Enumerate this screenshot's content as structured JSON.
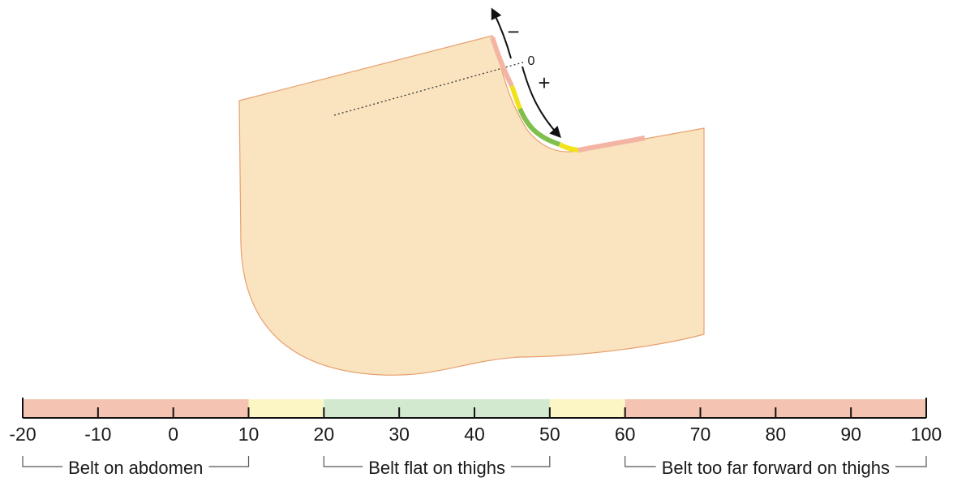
{
  "diagram": {
    "markers": {
      "zero": "0",
      "minus": "−",
      "plus": "+"
    },
    "colors": {
      "body_fill": "#f9e4bf",
      "body_outline": "#e8a070",
      "red_zone": "#f4c3b1",
      "yellow_zone": "#fbf6c3",
      "green_zone": "#d3e9cf",
      "belt_red": "#f4b4a4",
      "belt_yellow": "#f0e31c",
      "belt_green": "#7fbf4b",
      "arrow": "#111111"
    }
  },
  "scale": {
    "min": -20,
    "max": 100,
    "ticks": [
      -20,
      -10,
      0,
      10,
      20,
      30,
      40,
      50,
      60,
      70,
      80,
      90,
      100
    ],
    "tick_labels": [
      "-20",
      "-10",
      "0",
      "10",
      "20",
      "30",
      "40",
      "50",
      "60",
      "70",
      "80",
      "90",
      "100"
    ],
    "zones": [
      {
        "from": -20,
        "to": 10,
        "color": "#f4c3b1"
      },
      {
        "from": 10,
        "to": 20,
        "color": "#fbf6c3"
      },
      {
        "from": 20,
        "to": 50,
        "color": "#d3e9cf"
      },
      {
        "from": 50,
        "to": 60,
        "color": "#fbf6c3"
      },
      {
        "from": 60,
        "to": 100,
        "color": "#f4c3b1"
      }
    ],
    "labels": [
      {
        "text": "Belt on abdomen",
        "from": -20,
        "to": 10
      },
      {
        "text": "Belt flat on thighs",
        "from": 20,
        "to": 50
      },
      {
        "text": "Belt too far forward on thighs",
        "from": 60,
        "to": 100
      }
    ]
  }
}
